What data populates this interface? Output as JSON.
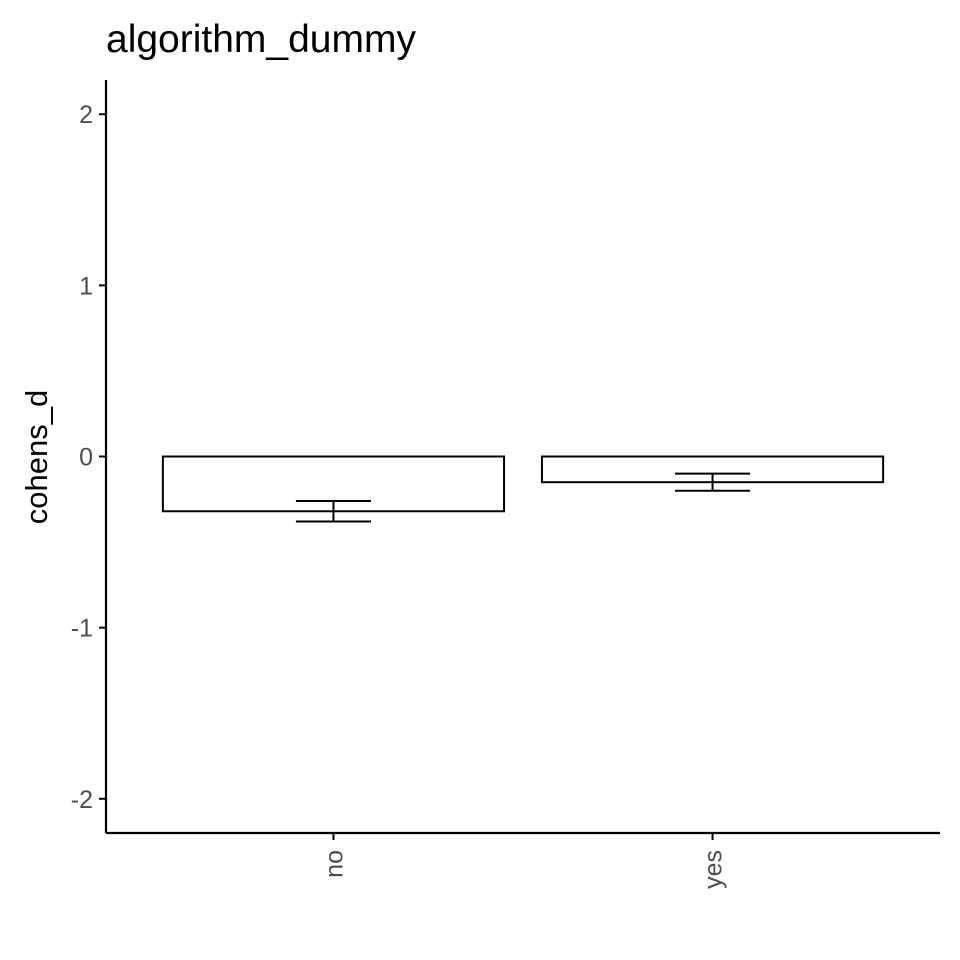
{
  "chart_data": {
    "type": "bar",
    "title": "algorithm_dummy",
    "xlabel": "",
    "ylabel": "cohens_d",
    "categories": [
      "no",
      "yes"
    ],
    "values": [
      -0.32,
      -0.15
    ],
    "error_bars": {
      "lower": [
        -0.38,
        -0.2
      ],
      "upper": [
        -0.26,
        -0.1
      ]
    },
    "ylim": [
      -2.2,
      2.2
    ],
    "yticks": [
      -2,
      -1,
      0,
      1,
      2
    ],
    "ytick_labels": [
      "-2",
      "-1",
      "0",
      "1",
      "2"
    ],
    "grid": false,
    "legend": "none",
    "colors": {
      "bar_fill": "#ffffff",
      "bar_outline": "#000000",
      "axis": "#000000",
      "tick_label": "#4d4d4d"
    }
  }
}
